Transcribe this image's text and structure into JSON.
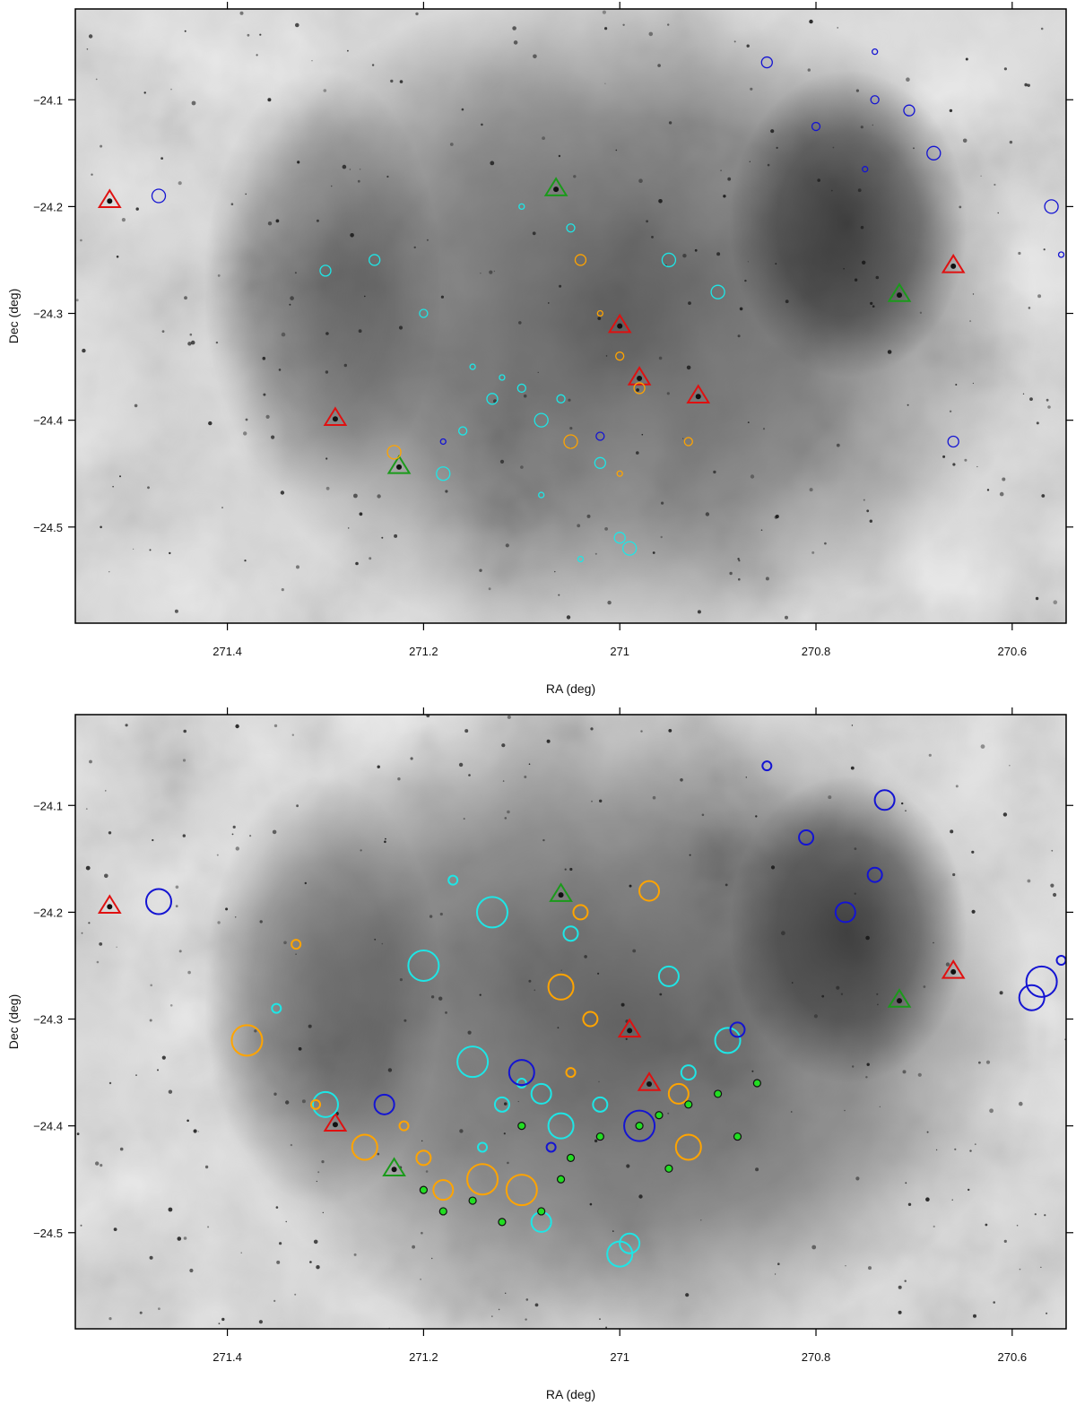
{
  "chart_data": [
    {
      "type": "scatter",
      "panel": "top",
      "xlabel": "RA (deg)",
      "ylabel": "Dec (deg)",
      "xlim": [
        271.555,
        270.545
      ],
      "ylim": [
        -24.59,
        -24.015
      ],
      "x_ticks": [
        "271.4",
        "271.2",
        "271",
        "270.8",
        "270.6"
      ],
      "x_tick_values": [
        271.4,
        271.2,
        271.0,
        270.8,
        270.6
      ],
      "y_ticks": [
        "-24.1",
        "-24.2",
        "-24.3",
        "-24.4",
        "-24.5"
      ],
      "y_tick_values": [
        -24.1,
        -24.2,
        -24.3,
        -24.4,
        -24.5
      ],
      "grid": false,
      "background": "grayscale nebula image",
      "colors": {
        "cyan": "#22e0e0",
        "blue": "#1a1ad0",
        "orange": "#ffa500",
        "red": "#e01010",
        "green": "#20a020"
      },
      "series": [
        {
          "color": "red",
          "marker": "triangle",
          "points": [
            [
              271.52,
              -24.194
            ],
            [
              271.29,
              -24.398
            ],
            [
              271.0,
              -24.311
            ],
            [
              270.98,
              -24.36
            ],
            [
              270.92,
              -24.377
            ],
            [
              270.66,
              -24.255
            ]
          ]
        },
        {
          "color": "green",
          "marker": "triangle",
          "points": [
            [
              271.065,
              -24.183
            ],
            [
              271.225,
              -24.443
            ],
            [
              270.715,
              -24.282
            ]
          ]
        },
        {
          "color": "cyan",
          "marker": "circle",
          "points": [
            [
              271.12,
              -24.36
            ],
            [
              271.1,
              -24.37
            ],
            [
              271.13,
              -24.38
            ],
            [
              271.08,
              -24.4
            ],
            [
              271.15,
              -24.35
            ],
            [
              271.06,
              -24.38
            ],
            [
              271.0,
              -24.51
            ],
            [
              270.99,
              -24.52
            ],
            [
              271.04,
              -24.53
            ],
            [
              271.2,
              -24.3
            ],
            [
              271.25,
              -24.25
            ],
            [
              271.18,
              -24.45
            ],
            [
              271.1,
              -24.2
            ],
            [
              271.05,
              -24.22
            ],
            [
              271.3,
              -24.26
            ],
            [
              270.95,
              -24.25
            ],
            [
              271.08,
              -24.47
            ],
            [
              271.16,
              -24.41
            ],
            [
              271.02,
              -24.44
            ],
            [
              270.9,
              -24.28
            ]
          ]
        },
        {
          "color": "blue",
          "marker": "circle",
          "points": [
            [
              270.74,
              -24.055
            ],
            [
              270.74,
              -24.1
            ],
            [
              270.705,
              -24.11
            ],
            [
              270.68,
              -24.15
            ],
            [
              270.75,
              -24.165
            ],
            [
              270.8,
              -24.125
            ],
            [
              270.85,
              -24.065
            ],
            [
              271.47,
              -24.19
            ],
            [
              271.18,
              -24.42
            ],
            [
              271.02,
              -24.415
            ],
            [
              270.66,
              -24.42
            ],
            [
              270.56,
              -24.2
            ],
            [
              270.55,
              -24.245
            ]
          ]
        },
        {
          "color": "orange",
          "marker": "circle",
          "points": [
            [
              271.02,
              -24.3
            ],
            [
              271.0,
              -24.34
            ],
            [
              270.98,
              -24.37
            ],
            [
              271.05,
              -24.42
            ],
            [
              271.0,
              -24.45
            ],
            [
              270.93,
              -24.42
            ],
            [
              271.04,
              -24.25
            ],
            [
              271.23,
              -24.43
            ]
          ]
        }
      ]
    },
    {
      "type": "scatter",
      "panel": "bottom",
      "xlabel": "RA (deg)",
      "ylabel": "Dec (deg)",
      "xlim": [
        271.555,
        270.545
      ],
      "ylim": [
        -24.59,
        -24.015
      ],
      "x_ticks": [
        "271.4",
        "271.2",
        "271",
        "270.8",
        "270.6"
      ],
      "x_tick_values": [
        271.4,
        271.2,
        271.0,
        270.8,
        270.6
      ],
      "y_ticks": [
        "-24.1",
        "-24.2",
        "-24.3",
        "-24.4",
        "-24.5"
      ],
      "y_tick_values": [
        -24.1,
        -24.2,
        -24.3,
        -24.4,
        -24.5
      ],
      "grid": false,
      "background": "grayscale nebula image",
      "series": [
        {
          "color": "red",
          "marker": "triangle",
          "points": [
            [
              271.52,
              -24.194
            ],
            [
              271.29,
              -24.398
            ],
            [
              270.66,
              -24.255
            ],
            [
              270.99,
              -24.31
            ],
            [
              270.97,
              -24.36
            ]
          ]
        },
        {
          "color": "green",
          "marker": "triangle",
          "points": [
            [
              271.06,
              -24.183
            ],
            [
              270.715,
              -24.282
            ],
            [
              271.23,
              -24.44
            ]
          ]
        },
        {
          "color": "cyan",
          "marker": "circle",
          "points": [
            [
              271.1,
              -24.36
            ],
            [
              271.12,
              -24.38
            ],
            [
              271.08,
              -24.37
            ],
            [
              271.06,
              -24.4
            ],
            [
              271.15,
              -24.34
            ],
            [
              271.14,
              -24.42
            ],
            [
              271.02,
              -24.38
            ],
            [
              270.99,
              -24.51
            ],
            [
              271.0,
              -24.52
            ],
            [
              271.13,
              -24.2
            ],
            [
              271.17,
              -24.17
            ],
            [
              271.05,
              -24.22
            ],
            [
              270.95,
              -24.26
            ],
            [
              271.3,
              -24.38
            ],
            [
              271.2,
              -24.25
            ],
            [
              271.35,
              -24.29
            ],
            [
              270.93,
              -24.35
            ],
            [
              271.08,
              -24.49
            ],
            [
              270.89,
              -24.32
            ]
          ]
        },
        {
          "color": "blue",
          "marker": "circle",
          "points": [
            [
              270.85,
              -24.063
            ],
            [
              270.74,
              -24.165
            ],
            [
              270.77,
              -24.2
            ],
            [
              270.58,
              -24.28
            ],
            [
              270.57,
              -24.265
            ],
            [
              270.55,
              -24.245
            ],
            [
              270.81,
              -24.13
            ],
            [
              270.73,
              -24.095
            ],
            [
              271.47,
              -24.19
            ],
            [
              270.98,
              -24.4
            ],
            [
              271.07,
              -24.42
            ],
            [
              270.88,
              -24.31
            ],
            [
              271.24,
              -24.38
            ],
            [
              271.1,
              -24.35
            ]
          ]
        },
        {
          "color": "orange",
          "marker": "circle",
          "points": [
            [
              271.22,
              -24.4
            ],
            [
              271.2,
              -24.43
            ],
            [
              271.18,
              -24.46
            ],
            [
              271.26,
              -24.42
            ],
            [
              271.14,
              -24.45
            ],
            [
              271.05,
              -24.35
            ],
            [
              271.03,
              -24.3
            ],
            [
              270.94,
              -24.37
            ],
            [
              270.93,
              -24.42
            ],
            [
              271.38,
              -24.32
            ],
            [
              271.31,
              -24.38
            ],
            [
              271.04,
              -24.2
            ],
            [
              270.97,
              -24.18
            ],
            [
              271.06,
              -24.27
            ],
            [
              271.1,
              -24.46
            ],
            [
              271.33,
              -24.23
            ]
          ]
        },
        {
          "color": "green",
          "marker": "dot",
          "points": [
            [
              271.2,
              -24.46
            ],
            [
              271.15,
              -24.47
            ],
            [
              271.12,
              -24.49
            ],
            [
              271.08,
              -24.48
            ],
            [
              271.05,
              -24.43
            ],
            [
              271.02,
              -24.41
            ],
            [
              270.98,
              -24.4
            ],
            [
              270.96,
              -24.39
            ],
            [
              270.93,
              -24.38
            ],
            [
              270.9,
              -24.37
            ],
            [
              270.86,
              -24.36
            ],
            [
              270.95,
              -24.44
            ],
            [
              270.88,
              -24.41
            ],
            [
              271.18,
              -24.48
            ],
            [
              271.1,
              -24.4
            ],
            [
              271.06,
              -24.45
            ]
          ]
        }
      ]
    }
  ]
}
